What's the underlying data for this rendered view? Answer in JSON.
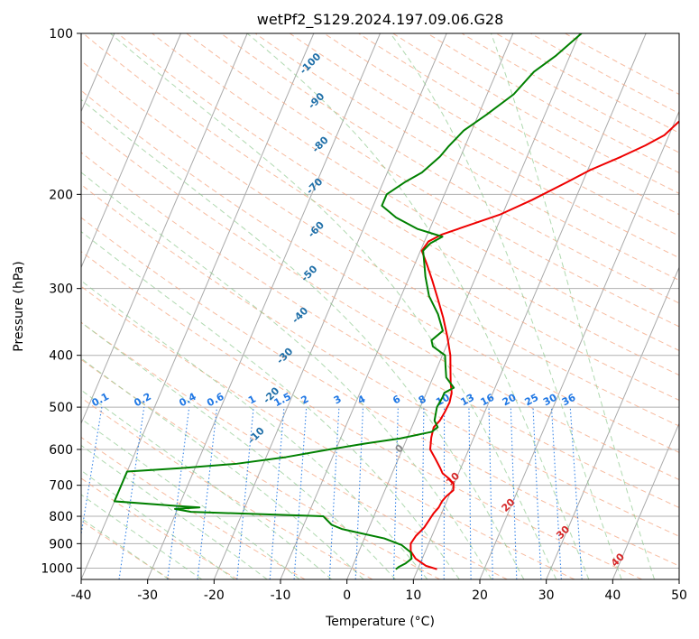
{
  "chart_data": {
    "type": "line",
    "title": "wetPf2_S129.2024.197.09.06.G28",
    "xlabel": "Temperature (°C)",
    "ylabel": "Pressure (hPa)",
    "xlim": [
      -40,
      50
    ],
    "ylim": [
      1050,
      100
    ],
    "y_scale": "log",
    "grid": true,
    "x_ticks": [
      "-40",
      "-30",
      "-20",
      "-10",
      "0",
      "10",
      "20",
      "30",
      "40",
      "50"
    ],
    "y_ticks": [
      {
        "value": 100,
        "label": "100"
      },
      {
        "value": 200,
        "label": "200"
      },
      {
        "value": 300,
        "label": "300"
      },
      {
        "value": 400,
        "label": "400"
      },
      {
        "value": 500,
        "label": "500"
      },
      {
        "value": 600,
        "label": "600"
      },
      {
        "value": 700,
        "label": "700"
      },
      {
        "value": 800,
        "label": "800"
      },
      {
        "value": 900,
        "label": "900"
      },
      {
        "value": 1000,
        "label": "1000"
      }
    ],
    "dry_adiabat_labels": [
      {
        "label": "-100",
        "x": -38.1,
        "y": 115
      },
      {
        "label": "-90",
        "x": -34.8,
        "y": 135
      },
      {
        "label": "-80",
        "x": -31.4,
        "y": 163
      },
      {
        "label": "-70",
        "x": -29.6,
        "y": 195
      },
      {
        "label": "-60",
        "x": -26.6,
        "y": 235
      },
      {
        "label": "-50",
        "x": -24.8,
        "y": 284
      },
      {
        "label": "-40",
        "x": -23.5,
        "y": 340
      },
      {
        "label": "-30",
        "x": -23.2,
        "y": 405
      },
      {
        "label": "-20",
        "x": -22.7,
        "y": 480
      },
      {
        "label": "-10",
        "x": -22.4,
        "y": 570
      }
    ],
    "moist_adiabat_labels": [
      {
        "label": "0",
        "x": 0,
        "y": 604
      },
      {
        "label": "10",
        "x": 10,
        "y": 688
      },
      {
        "label": "20",
        "x": 20,
        "y": 770
      },
      {
        "label": "30",
        "x": 30,
        "y": 866
      },
      {
        "label": "40",
        "x": 40,
        "y": 975
      }
    ],
    "mixing_ratio_labels": [
      "0.1",
      "0.2",
      "0.4",
      "0.6",
      "1",
      "1.5",
      "2",
      "3",
      "4",
      "6",
      "8",
      "10",
      "13",
      "16",
      "20",
      "25",
      "30",
      "36"
    ],
    "mixing_ratio_values": [
      0.1,
      0.2,
      0.4,
      0.6,
      1,
      1.5,
      2,
      3,
      4,
      6,
      8,
      10,
      13,
      16,
      20,
      25,
      30,
      36
    ],
    "series": [
      {
        "role": "temperature",
        "color": "#ee0000",
        "points": [
          [
            12.9,
            1005
          ],
          [
            11.0,
            990
          ],
          [
            9.0,
            960
          ],
          [
            7.8,
            930
          ],
          [
            7.3,
            900
          ],
          [
            7.6,
            870
          ],
          [
            8.3,
            840
          ],
          [
            8.6,
            810
          ],
          [
            8.8,
            790
          ],
          [
            9.2,
            770
          ],
          [
            9.3,
            750
          ],
          [
            9.6,
            735
          ],
          [
            10.3,
            715
          ],
          [
            9.9,
            695
          ],
          [
            8.9,
            680
          ],
          [
            7.6,
            665
          ],
          [
            6.9,
            650
          ],
          [
            5.6,
            625
          ],
          [
            4.2,
            600
          ],
          [
            3.6,
            570
          ],
          [
            3.3,
            545
          ],
          [
            3.8,
            530
          ],
          [
            4.0,
            510
          ],
          [
            4.1,
            490
          ],
          [
            3.8,
            470
          ],
          [
            3.0,
            450
          ],
          [
            2.3,
            430
          ],
          [
            1.2,
            400
          ],
          [
            -0.4,
            370
          ],
          [
            -2.3,
            340
          ],
          [
            -4.2,
            315
          ],
          [
            -6.3,
            290
          ],
          [
            -8.2,
            270
          ],
          [
            -9.8,
            255
          ],
          [
            -9.4,
            245
          ],
          [
            -7.9,
            238
          ],
          [
            -4.2,
            228
          ],
          [
            -0.3,
            218
          ],
          [
            3.5,
            205
          ],
          [
            7.6,
            190
          ],
          [
            10.4,
            180
          ],
          [
            14.2,
            170
          ],
          [
            17.1,
            162
          ],
          [
            19.3,
            155
          ],
          [
            20.8,
            145
          ],
          [
            22.8,
            135
          ],
          [
            24.9,
            125
          ],
          [
            26.0,
            115
          ],
          [
            27.6,
            108
          ],
          [
            29.4,
            100
          ]
        ]
      },
      {
        "role": "dewpoint",
        "color": "#008000",
        "points": [
          [
            6.7,
            1005
          ],
          [
            7.0,
            995
          ],
          [
            7.8,
            980
          ],
          [
            8.4,
            960
          ],
          [
            7.9,
            935
          ],
          [
            6.0,
            905
          ],
          [
            3.0,
            880
          ],
          [
            -1.0,
            860
          ],
          [
            -4.0,
            845
          ],
          [
            -5.8,
            830
          ],
          [
            -7.6,
            800
          ],
          [
            -27.8,
            785
          ],
          [
            -30.4,
            775
          ],
          [
            -26.8,
            770
          ],
          [
            -30.5,
            765
          ],
          [
            -40.0,
            750
          ],
          [
            -40.0,
            660
          ],
          [
            -32.0,
            650
          ],
          [
            -24.0,
            638
          ],
          [
            -17.0,
            620
          ],
          [
            -11.0,
            600
          ],
          [
            -6.0,
            585
          ],
          [
            -1.0,
            572
          ],
          [
            3.3,
            556
          ],
          [
            3.9,
            545
          ],
          [
            3.0,
            530
          ],
          [
            2.5,
            500
          ],
          [
            2.7,
            480
          ],
          [
            2.7,
            470
          ],
          [
            3.8,
            460
          ],
          [
            2.0,
            440
          ],
          [
            1.2,
            420
          ],
          [
            0.4,
            400
          ],
          [
            -2.0,
            385
          ],
          [
            -2.6,
            375
          ],
          [
            -1.5,
            360
          ],
          [
            -3.3,
            335
          ],
          [
            -5.8,
            310
          ],
          [
            -7.6,
            285
          ],
          [
            -8.9,
            265
          ],
          [
            -9.6,
            255
          ],
          [
            -9.0,
            247
          ],
          [
            -7.6,
            240
          ],
          [
            -11.9,
            232
          ],
          [
            -15.8,
            221
          ],
          [
            -18.7,
            210
          ],
          [
            -18.7,
            200
          ],
          [
            -16.8,
            190
          ],
          [
            -14.8,
            182
          ],
          [
            -13.1,
            170
          ],
          [
            -12.5,
            163
          ],
          [
            -11.2,
            152
          ],
          [
            -8.8,
            142
          ],
          [
            -6.0,
            130
          ],
          [
            -4.4,
            118
          ],
          [
            -2.1,
            110
          ],
          [
            0.3,
            100
          ]
        ]
      }
    ]
  },
  "style": {
    "temperature_color": "#ee0000",
    "dewpoint_color": "#008000",
    "isotherm_color": "#aaaaaa",
    "dry_adiabat_color": "#f4a582",
    "moist_adiabat_color": "#8fc98f",
    "mixing_ratio_color": "#1f77e4",
    "dry_label_color": "#1f6fa8",
    "moist_label_color": "#d62728",
    "zero_moist_label_color": "#888888"
  }
}
